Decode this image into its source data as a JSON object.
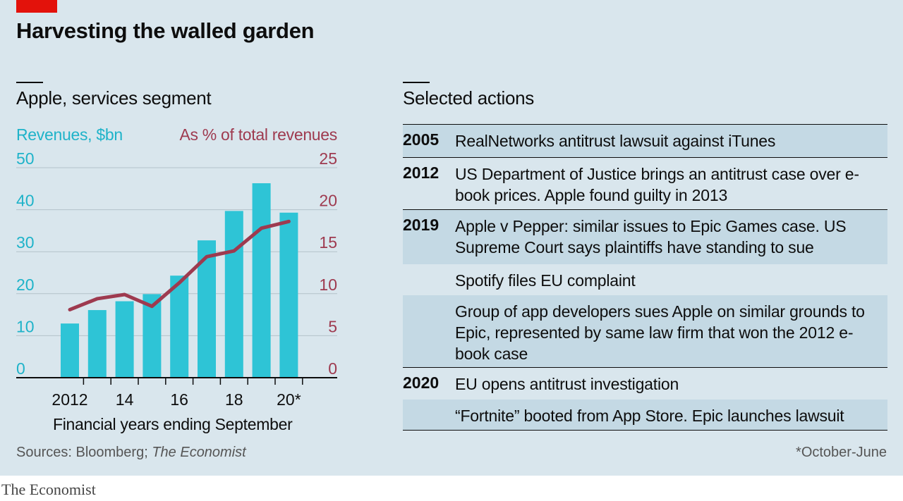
{
  "title": "Harvesting the walled garden",
  "left_panel": {
    "subtitle": "Apple, services segment",
    "left_axis_label": "Revenues, $bn",
    "right_axis_label": "As % of total revenues",
    "xlabel": "Financial years ending September"
  },
  "right_panel": {
    "subtitle": "Selected actions",
    "rows": [
      {
        "year": "2005",
        "text": "RealNetworks antitrust lawsuit against iTunes",
        "shaded": true
      },
      {
        "year": "2012",
        "text": "US Department of Justice brings an antitrust case over e-book prices. Apple found guilty in 2013",
        "shaded": false
      },
      {
        "year": "2019",
        "text": "Apple v Pepper: similar issues to Epic Games case. US Supreme Court says plaintiffs have standing to sue",
        "shaded": true
      },
      {
        "year": "",
        "text": "Spotify files EU complaint",
        "shaded": false
      },
      {
        "year": "",
        "text": "Group of app developers sues Apple on similar grounds to Epic, represented by same law firm that won the 2012 e-book case",
        "shaded": true
      },
      {
        "year": "2020",
        "text": "EU opens antitrust investigation",
        "shaded": false
      },
      {
        "year": "",
        "text": "“Fortnite” booted from App Store. Epic launches lawsuit",
        "shaded": true
      }
    ]
  },
  "source_prefix": "Sources: Bloomberg; ",
  "source_italic": "The Economist",
  "footnote": "*October-June",
  "brand": "The Economist",
  "colors": {
    "bars": "#2ec4d6",
    "line": "#9e3a4f",
    "left_axis_text": "#1fb3c9",
    "right_axis_text": "#9e3a4f",
    "accent_tag": "#e3120b"
  },
  "chart_data": {
    "type": "bar",
    "title": "Apple, services segment",
    "xlabel": "Financial years ending September",
    "ylabel": "Revenues, $bn",
    "y2label": "As % of total revenues",
    "categories": [
      "2012",
      "2013",
      "2014",
      "2015",
      "2016",
      "2017",
      "2018",
      "2019",
      "2020*"
    ],
    "tick_labels": [
      "2012",
      "",
      "14",
      "",
      "16",
      "",
      "18",
      "",
      "20*"
    ],
    "ylim": [
      0,
      50
    ],
    "yticks": [
      0,
      10,
      20,
      30,
      40,
      50
    ],
    "y2lim": [
      0,
      25
    ],
    "y2ticks": [
      0,
      5,
      10,
      15,
      20,
      25
    ],
    "grid": true,
    "series": [
      {
        "name": "Revenues, $bn",
        "type": "bar",
        "axis": "left",
        "values": [
          12.9,
          16.1,
          18.2,
          19.9,
          24.3,
          32.7,
          39.7,
          46.3,
          39.3
        ]
      },
      {
        "name": "As % of total revenues",
        "type": "line",
        "axis": "right",
        "values": [
          8.1,
          9.4,
          9.9,
          8.5,
          11.3,
          14.4,
          15.1,
          17.8,
          18.6
        ]
      }
    ]
  }
}
